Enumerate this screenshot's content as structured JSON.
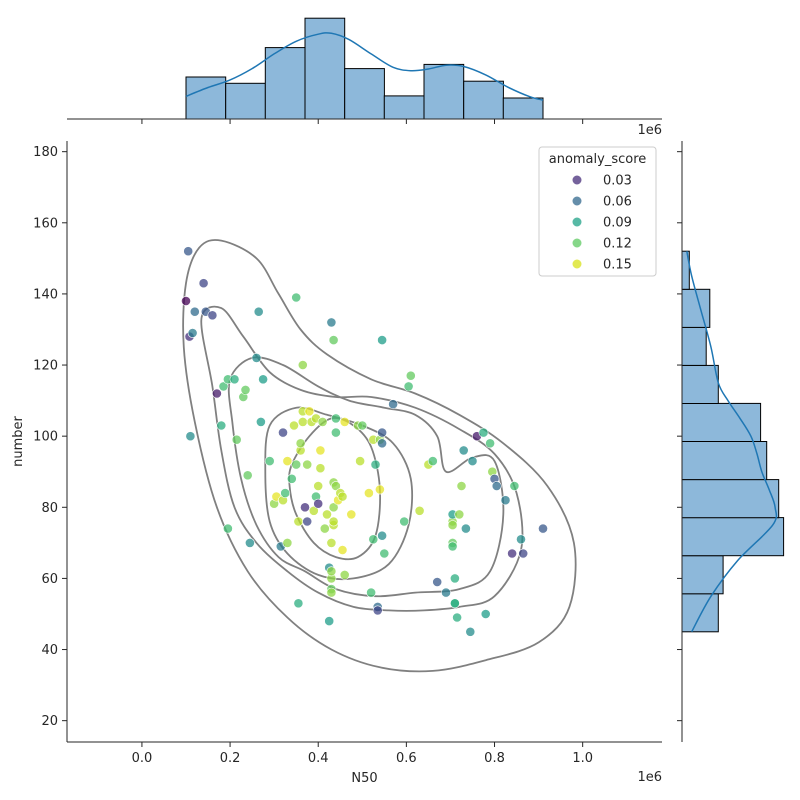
{
  "chart_data": {
    "type": "scatter",
    "title": "",
    "xlabel": "N50",
    "ylabel": "number",
    "x_offset_label": "1e6",
    "marg_x_offset_label": "1e6",
    "xlim": [
      -170000,
      1180000
    ],
    "ylim": [
      14,
      183
    ],
    "x_ticks": [
      0.0,
      0.2,
      0.4,
      0.6,
      0.8,
      1.0
    ],
    "x_tick_labels": [
      "0.0",
      "0.2",
      "0.4",
      "0.6",
      "0.8",
      "1.0"
    ],
    "y_ticks": [
      20,
      40,
      60,
      80,
      100,
      120,
      140,
      160,
      180
    ],
    "y_tick_labels": [
      "20",
      "40",
      "60",
      "80",
      "100",
      "120",
      "140",
      "160",
      "180"
    ],
    "grid": false,
    "legend": {
      "title": "anomaly_score",
      "placement": "top-right",
      "entries": [
        {
          "label": "0.03",
          "color": "#472d7b"
        },
        {
          "label": "0.06",
          "color": "#31688e"
        },
        {
          "label": "0.09",
          "color": "#1fa187"
        },
        {
          "label": "0.12",
          "color": "#5ec962"
        },
        {
          "label": "0.15",
          "color": "#d8e219"
        }
      ]
    },
    "colors": {
      "points_cmap": "viridis",
      "hist_fill": "#8db8da",
      "kde_line": "#1f77b4",
      "contour": "#808080"
    },
    "points_columns": [
      "x",
      "y",
      "anomaly_score"
    ],
    "points": [
      [
        100000,
        138,
        0.02
      ],
      [
        105000,
        152,
        0.06
      ],
      [
        108000,
        128,
        0.04
      ],
      [
        110000,
        100,
        0.09
      ],
      [
        115000,
        129,
        0.08
      ],
      [
        120000,
        135,
        0.07
      ],
      [
        140000,
        143,
        0.05
      ],
      [
        145000,
        135,
        0.06
      ],
      [
        160000,
        134,
        0.05
      ],
      [
        170000,
        112,
        0.03
      ],
      [
        180000,
        103,
        0.11
      ],
      [
        185000,
        114,
        0.12
      ],
      [
        195000,
        116,
        0.12
      ],
      [
        195000,
        74,
        0.12
      ],
      [
        210000,
        116,
        0.11
      ],
      [
        215000,
        99,
        0.13
      ],
      [
        230000,
        111,
        0.13
      ],
      [
        235000,
        113,
        0.13
      ],
      [
        240000,
        89,
        0.13
      ],
      [
        245000,
        70,
        0.09
      ],
      [
        260000,
        122,
        0.09
      ],
      [
        265000,
        135,
        0.09
      ],
      [
        270000,
        104,
        0.1
      ],
      [
        275000,
        116,
        0.1
      ],
      [
        290000,
        93,
        0.12
      ],
      [
        300000,
        81,
        0.14
      ],
      [
        305000,
        83,
        0.16
      ],
      [
        315000,
        69,
        0.08
      ],
      [
        320000,
        101,
        0.05
      ],
      [
        320000,
        82,
        0.15
      ],
      [
        325000,
        84,
        0.12
      ],
      [
        330000,
        70,
        0.14
      ],
      [
        330000,
        93,
        0.16
      ],
      [
        340000,
        88,
        0.12
      ],
      [
        345000,
        103,
        0.15
      ],
      [
        350000,
        139,
        0.12
      ],
      [
        350000,
        92,
        0.13
      ],
      [
        355000,
        53,
        0.11
      ],
      [
        355000,
        76,
        0.15
      ],
      [
        360000,
        96,
        0.15
      ],
      [
        360000,
        98,
        0.14
      ],
      [
        365000,
        107,
        0.15
      ],
      [
        365000,
        104,
        0.15
      ],
      [
        365000,
        120,
        0.14
      ],
      [
        370000,
        80,
        0.04
      ],
      [
        375000,
        76,
        0.05
      ],
      [
        375000,
        92,
        0.14
      ],
      [
        380000,
        107,
        0.16
      ],
      [
        385000,
        104,
        0.15
      ],
      [
        390000,
        79,
        0.15
      ],
      [
        395000,
        83,
        0.12
      ],
      [
        395000,
        105,
        0.15
      ],
      [
        400000,
        81,
        0.04
      ],
      [
        400000,
        86,
        0.15
      ],
      [
        405000,
        91,
        0.15
      ],
      [
        405000,
        96,
        0.16
      ],
      [
        410000,
        104,
        0.14
      ],
      [
        415000,
        74,
        0.14
      ],
      [
        420000,
        78,
        0.15
      ],
      [
        425000,
        63,
        0.09
      ],
      [
        425000,
        48,
        0.1
      ],
      [
        430000,
        132,
        0.08
      ],
      [
        430000,
        60,
        0.14
      ],
      [
        430000,
        70,
        0.15
      ],
      [
        430000,
        57,
        0.13
      ],
      [
        430000,
        62,
        0.14
      ],
      [
        430000,
        56,
        0.14
      ],
      [
        435000,
        75,
        0.15
      ],
      [
        435000,
        127,
        0.13
      ],
      [
        435000,
        76,
        0.15
      ],
      [
        435000,
        87,
        0.14
      ],
      [
        435000,
        80,
        0.14
      ],
      [
        440000,
        105,
        0.12
      ],
      [
        440000,
        101,
        0.12
      ],
      [
        440000,
        86,
        0.14
      ],
      [
        445000,
        82,
        0.16
      ],
      [
        450000,
        84,
        0.15
      ],
      [
        455000,
        83,
        0.15
      ],
      [
        455000,
        68,
        0.16
      ],
      [
        460000,
        104,
        0.16
      ],
      [
        460000,
        61,
        0.14
      ],
      [
        475000,
        78,
        0.16
      ],
      [
        490000,
        103,
        0.14
      ],
      [
        495000,
        93,
        0.15
      ],
      [
        500000,
        103,
        0.13
      ],
      [
        515000,
        84,
        0.16
      ],
      [
        520000,
        56,
        0.12
      ],
      [
        525000,
        99,
        0.15
      ],
      [
        525000,
        71,
        0.12
      ],
      [
        530000,
        92,
        0.11
      ],
      [
        535000,
        52,
        0.07
      ],
      [
        535000,
        51,
        0.05
      ],
      [
        540000,
        85,
        0.16
      ],
      [
        540000,
        99,
        0.14
      ],
      [
        545000,
        101,
        0.06
      ],
      [
        545000,
        98,
        0.07
      ],
      [
        545000,
        72,
        0.09
      ],
      [
        545000,
        127,
        0.1
      ],
      [
        550000,
        67,
        0.12
      ],
      [
        570000,
        109,
        0.07
      ],
      [
        595000,
        76,
        0.12
      ],
      [
        605000,
        114,
        0.12
      ],
      [
        610000,
        117,
        0.13
      ],
      [
        630000,
        79,
        0.15
      ],
      [
        650000,
        92,
        0.15
      ],
      [
        660000,
        93,
        0.12
      ],
      [
        670000,
        59,
        0.06
      ],
      [
        690000,
        56,
        0.08
      ],
      [
        705000,
        76,
        0.14
      ],
      [
        705000,
        75,
        0.14
      ],
      [
        705000,
        78,
        0.1
      ],
      [
        705000,
        70,
        0.13
      ],
      [
        705000,
        69,
        0.12
      ],
      [
        710000,
        60,
        0.11
      ],
      [
        710000,
        53,
        0.11
      ],
      [
        710000,
        53,
        0.11
      ],
      [
        715000,
        49,
        0.11
      ],
      [
        720000,
        78,
        0.14
      ],
      [
        725000,
        86,
        0.14
      ],
      [
        730000,
        96,
        0.09
      ],
      [
        735000,
        74,
        0.09
      ],
      [
        745000,
        45,
        0.09
      ],
      [
        750000,
        93,
        0.09
      ],
      [
        760000,
        100,
        0.03
      ],
      [
        775000,
        101,
        0.11
      ],
      [
        780000,
        50,
        0.1
      ],
      [
        790000,
        98,
        0.12
      ],
      [
        795000,
        90,
        0.14
      ],
      [
        800000,
        88,
        0.06
      ],
      [
        805000,
        86,
        0.07
      ],
      [
        825000,
        82,
        0.08
      ],
      [
        840000,
        67,
        0.04
      ],
      [
        845000,
        86,
        0.12
      ],
      [
        860000,
        71,
        0.09
      ],
      [
        865000,
        67,
        0.05
      ],
      [
        910000,
        74,
        0.06
      ]
    ],
    "marginal_x": {
      "type": "histogram",
      "bins_edges": [
        100000,
        190000,
        280000,
        370000,
        460000,
        550000,
        640000,
        730000,
        820000,
        910000
      ],
      "counts": [
        10,
        8.5,
        17,
        24,
        12,
        5.5,
        13,
        9,
        5
      ],
      "kde": [
        [
          100000,
          5.4
        ],
        [
          150000,
          7.5
        ],
        [
          200000,
          9.3
        ],
        [
          250000,
          12
        ],
        [
          300000,
          15.5
        ],
        [
          350000,
          18.5
        ],
        [
          400000,
          20.2
        ],
        [
          430000,
          20.4
        ],
        [
          470000,
          18.9
        ],
        [
          520000,
          15.5
        ],
        [
          570000,
          12.3
        ],
        [
          610000,
          11.5
        ],
        [
          650000,
          11.9
        ],
        [
          690000,
          12.8
        ],
        [
          730000,
          12.5
        ],
        [
          780000,
          10.5
        ],
        [
          830000,
          7.6
        ],
        [
          880000,
          5.3
        ],
        [
          910000,
          4.5
        ]
      ]
    },
    "marginal_y": {
      "type": "histogram",
      "bins_edges": [
        45,
        55.7,
        66.4,
        77.1,
        87.8,
        98.5,
        109.2,
        119.9,
        130.6,
        141.3,
        152
      ],
      "counts": [
        3,
        3.4,
        8.4,
        8,
        7,
        6.5,
        3,
        2,
        2.3,
        0.6
      ],
      "kde": [
        [
          45,
          0.8
        ],
        [
          55,
          2.4
        ],
        [
          65,
          4.6
        ],
        [
          75,
          7.5
        ],
        [
          80,
          7.7
        ],
        [
          85,
          7.2
        ],
        [
          90,
          6.6
        ],
        [
          95,
          6.2
        ],
        [
          100,
          5.7
        ],
        [
          105,
          4.8
        ],
        [
          110,
          3.8
        ],
        [
          115,
          3.0
        ],
        [
          125,
          2.4
        ],
        [
          135,
          1.6
        ],
        [
          145,
          0.8
        ],
        [
          152,
          0.4
        ]
      ]
    },
    "kde_contours": [
      [
        [
          100000,
          143
        ],
        [
          130000,
          153
        ],
        [
          180000,
          155
        ],
        [
          260000,
          150
        ],
        [
          310000,
          140
        ],
        [
          360000,
          130
        ],
        [
          420000,
          123
        ],
        [
          520000,
          116
        ],
        [
          620000,
          112
        ],
        [
          720000,
          106
        ],
        [
          820000,
          98
        ],
        [
          920000,
          86
        ],
        [
          980000,
          70
        ],
        [
          970000,
          52
        ],
        [
          900000,
          42
        ],
        [
          780000,
          37
        ],
        [
          660000,
          34
        ],
        [
          540000,
          35
        ],
        [
          430000,
          40
        ],
        [
          330000,
          49
        ],
        [
          240000,
          62
        ],
        [
          170000,
          80
        ],
        [
          120000,
          104
        ],
        [
          95000,
          125
        ]
      ],
      [
        [
          135000,
          133
        ],
        [
          180000,
          136
        ],
        [
          230000,
          128
        ],
        [
          290000,
          118
        ],
        [
          360000,
          113
        ],
        [
          440000,
          111
        ],
        [
          520000,
          111
        ],
        [
          620000,
          108
        ],
        [
          720000,
          102
        ],
        [
          800000,
          95
        ],
        [
          850000,
          84
        ],
        [
          860000,
          68
        ],
        [
          800000,
          55
        ],
        [
          720000,
          52
        ],
        [
          640000,
          51
        ],
        [
          560000,
          51
        ],
        [
          480000,
          52
        ],
        [
          400000,
          56
        ],
        [
          330000,
          62
        ],
        [
          260000,
          70
        ],
        [
          210000,
          80
        ],
        [
          180000,
          96
        ],
        [
          160000,
          114
        ]
      ],
      [
        [
          200000,
          116
        ],
        [
          250000,
          122
        ],
        [
          320000,
          120
        ],
        [
          400000,
          114
        ],
        [
          470000,
          110
        ],
        [
          550000,
          108
        ],
        [
          620000,
          106
        ],
        [
          670000,
          100
        ],
        [
          690000,
          90
        ],
        [
          750000,
          94
        ],
        [
          800000,
          93
        ],
        [
          820000,
          78
        ],
        [
          790000,
          62
        ],
        [
          720000,
          57
        ],
        [
          620000,
          56
        ],
        [
          530000,
          55
        ],
        [
          440000,
          57
        ],
        [
          370000,
          62
        ],
        [
          310000,
          66
        ],
        [
          260000,
          75
        ],
        [
          225000,
          88
        ],
        [
          205000,
          104
        ]
      ],
      [
        [
          290000,
          103
        ],
        [
          350000,
          108
        ],
        [
          420000,
          106
        ],
        [
          500000,
          103
        ],
        [
          570000,
          98
        ],
        [
          610000,
          88
        ],
        [
          605000,
          75
        ],
        [
          560000,
          64
        ],
        [
          480000,
          60
        ],
        [
          400000,
          61
        ],
        [
          330000,
          67
        ],
        [
          290000,
          76
        ],
        [
          280000,
          90
        ]
      ],
      [
        [
          340000,
          92
        ],
        [
          380000,
          100
        ],
        [
          430000,
          105
        ],
        [
          480000,
          103
        ],
        [
          520000,
          97
        ],
        [
          540000,
          85
        ],
        [
          530000,
          72
        ],
        [
          490000,
          66
        ],
        [
          440000,
          66
        ],
        [
          390000,
          70
        ],
        [
          350000,
          78
        ],
        [
          335000,
          86
        ]
      ]
    ]
  }
}
